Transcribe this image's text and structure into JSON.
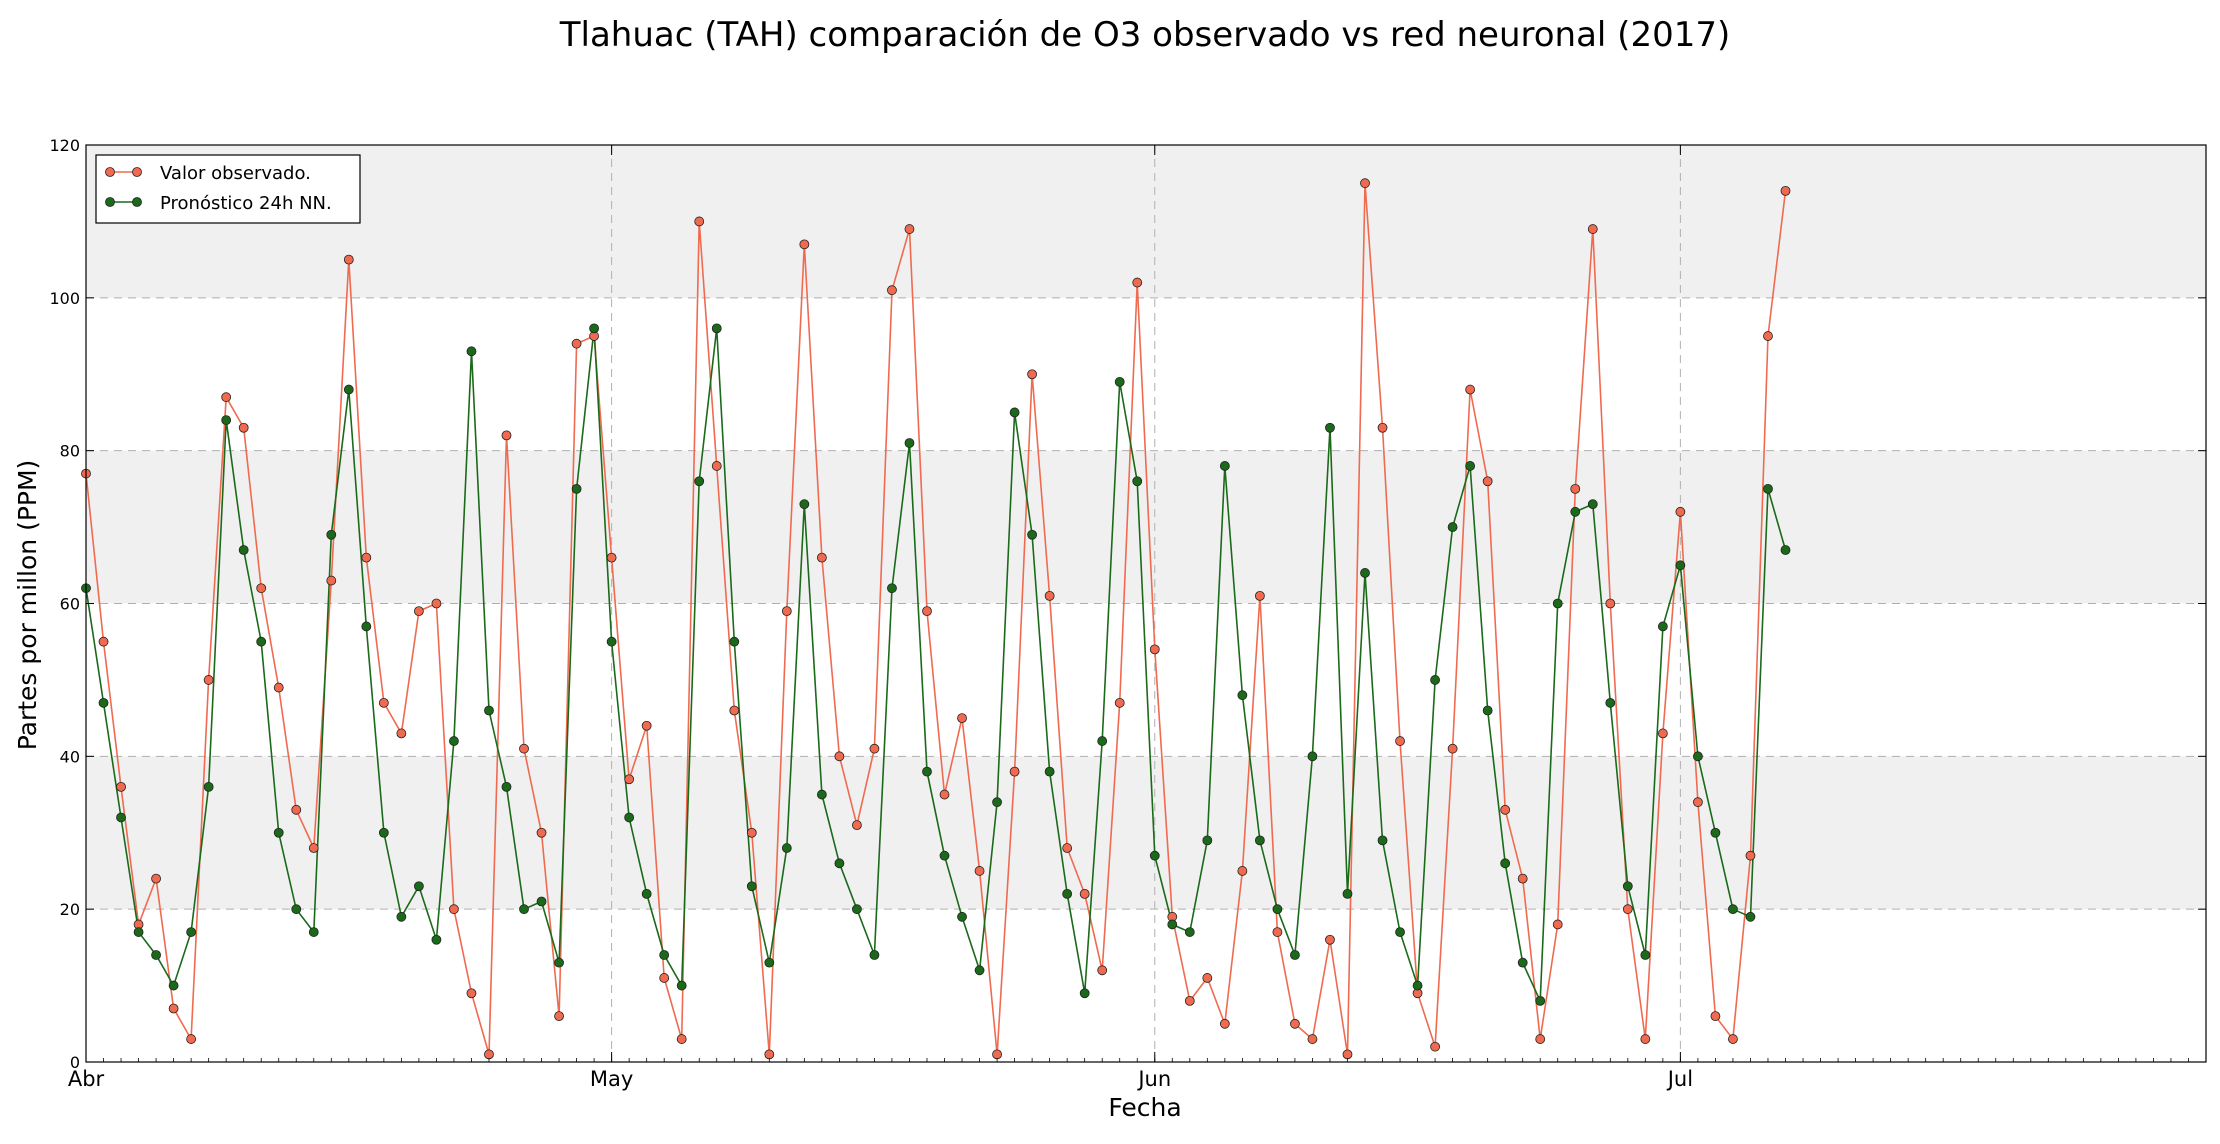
{
  "chart_data": {
    "type": "line",
    "title": "Tlahuac (TAH) comparación de O3 observado vs red neuronal (2017)",
    "xlabel": "Fecha",
    "ylabel": "Partes por millon (PPM)",
    "xlim": [
      "2017-04-01",
      "2017-07-31"
    ],
    "ylim": [
      0,
      120
    ],
    "yticks": [
      0,
      20,
      40,
      60,
      80,
      100,
      120
    ],
    "xticks": [
      {
        "date": "2017-04-01",
        "label": "Abr"
      },
      {
        "date": "2017-05-01",
        "label": "May"
      },
      {
        "date": "2017-06-01",
        "label": "Jun"
      },
      {
        "date": "2017-07-01",
        "label": "Jul"
      }
    ],
    "grid": true,
    "background_bands": "alternating light gray bands between y=20–40, 60–80, 100–120",
    "legend": {
      "position": "top-left"
    },
    "series": [
      {
        "name": "Valor observado.",
        "color": "#f06a50",
        "marker": "circle",
        "note": "approximate daily peaks and troughs; hourly data",
        "points": [
          [
            "2017-04-01",
            77
          ],
          [
            "2017-04-02",
            55
          ],
          [
            "2017-04-03",
            36
          ],
          [
            "2017-04-04",
            18
          ],
          [
            "2017-04-05",
            24
          ],
          [
            "2017-04-06",
            7
          ],
          [
            "2017-04-07",
            3
          ],
          [
            "2017-04-08",
            50
          ],
          [
            "2017-04-09",
            87
          ],
          [
            "2017-04-10",
            83
          ],
          [
            "2017-04-11",
            62
          ],
          [
            "2017-04-12",
            49
          ],
          [
            "2017-04-13",
            33
          ],
          [
            "2017-04-14",
            28
          ],
          [
            "2017-04-15",
            63
          ],
          [
            "2017-04-16",
            105
          ],
          [
            "2017-04-17",
            66
          ],
          [
            "2017-04-18",
            47
          ],
          [
            "2017-04-19",
            43
          ],
          [
            "2017-04-20",
            59
          ],
          [
            "2017-04-21",
            60
          ],
          [
            "2017-04-22",
            20
          ],
          [
            "2017-04-23",
            9
          ],
          [
            "2017-04-24",
            1
          ],
          [
            "2017-04-25",
            82
          ],
          [
            "2017-04-26",
            41
          ],
          [
            "2017-04-27",
            30
          ],
          [
            "2017-04-28",
            6
          ],
          [
            "2017-04-29",
            94
          ],
          [
            "2017-04-30",
            95
          ],
          [
            "2017-05-01",
            66
          ],
          [
            "2017-05-02",
            37
          ],
          [
            "2017-05-03",
            44
          ],
          [
            "2017-05-04",
            11
          ],
          [
            "2017-05-05",
            3
          ],
          [
            "2017-05-06",
            110
          ],
          [
            "2017-05-07",
            78
          ],
          [
            "2017-05-08",
            46
          ],
          [
            "2017-05-09",
            30
          ],
          [
            "2017-05-10",
            1
          ],
          [
            "2017-05-11",
            59
          ],
          [
            "2017-05-12",
            107
          ],
          [
            "2017-05-13",
            66
          ],
          [
            "2017-05-14",
            40
          ],
          [
            "2017-05-15",
            31
          ],
          [
            "2017-05-16",
            41
          ],
          [
            "2017-05-17",
            101
          ],
          [
            "2017-05-18",
            109
          ],
          [
            "2017-05-19",
            59
          ],
          [
            "2017-05-20",
            35
          ],
          [
            "2017-05-21",
            45
          ],
          [
            "2017-05-22",
            25
          ],
          [
            "2017-05-23",
            1
          ],
          [
            "2017-05-24",
            38
          ],
          [
            "2017-05-25",
            90
          ],
          [
            "2017-05-26",
            61
          ],
          [
            "2017-05-27",
            28
          ],
          [
            "2017-05-28",
            22
          ],
          [
            "2017-05-29",
            12
          ],
          [
            "2017-05-30",
            47
          ],
          [
            "2017-05-31",
            102
          ],
          [
            "2017-06-01",
            54
          ],
          [
            "2017-06-02",
            19
          ],
          [
            "2017-06-03",
            8
          ],
          [
            "2017-06-04",
            11
          ],
          [
            "2017-06-05",
            5
          ],
          [
            "2017-06-06",
            25
          ],
          [
            "2017-06-07",
            61
          ],
          [
            "2017-06-08",
            17
          ],
          [
            "2017-06-09",
            5
          ],
          [
            "2017-06-10",
            3
          ],
          [
            "2017-06-11",
            16
          ],
          [
            "2017-06-12",
            1
          ],
          [
            "2017-06-13",
            115
          ],
          [
            "2017-06-14",
            83
          ],
          [
            "2017-06-15",
            42
          ],
          [
            "2017-06-16",
            9
          ],
          [
            "2017-06-17",
            2
          ],
          [
            "2017-06-18",
            41
          ],
          [
            "2017-06-19",
            88
          ],
          [
            "2017-06-20",
            76
          ],
          [
            "2017-06-21",
            33
          ],
          [
            "2017-06-22",
            24
          ],
          [
            "2017-06-23",
            3
          ],
          [
            "2017-06-24",
            18
          ],
          [
            "2017-06-25",
            75
          ],
          [
            "2017-06-26",
            109
          ],
          [
            "2017-06-27",
            60
          ],
          [
            "2017-06-28",
            20
          ],
          [
            "2017-06-29",
            3
          ],
          [
            "2017-06-30",
            43
          ],
          [
            "2017-07-01",
            72
          ],
          [
            "2017-07-02",
            34
          ],
          [
            "2017-07-03",
            6
          ],
          [
            "2017-07-04",
            3
          ],
          [
            "2017-07-05",
            27
          ],
          [
            "2017-07-06",
            95
          ],
          [
            "2017-07-07",
            114
          ]
        ]
      },
      {
        "name": "Pronóstico 24h NN.",
        "color": "#1a6a1a",
        "marker": "circle",
        "note": "approximate daily peaks and troughs; hourly data",
        "points": [
          [
            "2017-04-01",
            62
          ],
          [
            "2017-04-02",
            47
          ],
          [
            "2017-04-03",
            32
          ],
          [
            "2017-04-04",
            17
          ],
          [
            "2017-04-05",
            14
          ],
          [
            "2017-04-06",
            10
          ],
          [
            "2017-04-07",
            17
          ],
          [
            "2017-04-08",
            36
          ],
          [
            "2017-04-09",
            84
          ],
          [
            "2017-04-10",
            67
          ],
          [
            "2017-04-11",
            55
          ],
          [
            "2017-04-12",
            30
          ],
          [
            "2017-04-13",
            20
          ],
          [
            "2017-04-14",
            17
          ],
          [
            "2017-04-15",
            69
          ],
          [
            "2017-04-16",
            88
          ],
          [
            "2017-04-17",
            57
          ],
          [
            "2017-04-18",
            30
          ],
          [
            "2017-04-19",
            19
          ],
          [
            "2017-04-20",
            23
          ],
          [
            "2017-04-21",
            16
          ],
          [
            "2017-04-22",
            42
          ],
          [
            "2017-04-23",
            93
          ],
          [
            "2017-04-24",
            46
          ],
          [
            "2017-04-25",
            36
          ],
          [
            "2017-04-26",
            20
          ],
          [
            "2017-04-27",
            21
          ],
          [
            "2017-04-28",
            13
          ],
          [
            "2017-04-29",
            75
          ],
          [
            "2017-04-30",
            96
          ],
          [
            "2017-05-01",
            55
          ],
          [
            "2017-05-02",
            32
          ],
          [
            "2017-05-03",
            22
          ],
          [
            "2017-05-04",
            14
          ],
          [
            "2017-05-05",
            10
          ],
          [
            "2017-05-06",
            76
          ],
          [
            "2017-05-07",
            96
          ],
          [
            "2017-05-08",
            55
          ],
          [
            "2017-05-09",
            23
          ],
          [
            "2017-05-10",
            13
          ],
          [
            "2017-05-11",
            28
          ],
          [
            "2017-05-12",
            73
          ],
          [
            "2017-05-13",
            35
          ],
          [
            "2017-05-14",
            26
          ],
          [
            "2017-05-15",
            20
          ],
          [
            "2017-05-16",
            14
          ],
          [
            "2017-05-17",
            62
          ],
          [
            "2017-05-18",
            81
          ],
          [
            "2017-05-19",
            38
          ],
          [
            "2017-05-20",
            27
          ],
          [
            "2017-05-21",
            19
          ],
          [
            "2017-05-22",
            12
          ],
          [
            "2017-05-23",
            34
          ],
          [
            "2017-05-24",
            85
          ],
          [
            "2017-05-25",
            69
          ],
          [
            "2017-05-26",
            38
          ],
          [
            "2017-05-27",
            22
          ],
          [
            "2017-05-28",
            9
          ],
          [
            "2017-05-29",
            42
          ],
          [
            "2017-05-30",
            89
          ],
          [
            "2017-05-31",
            76
          ],
          [
            "2017-06-01",
            27
          ],
          [
            "2017-06-02",
            18
          ],
          [
            "2017-06-03",
            17
          ],
          [
            "2017-06-04",
            29
          ],
          [
            "2017-06-05",
            78
          ],
          [
            "2017-06-06",
            48
          ],
          [
            "2017-06-07",
            29
          ],
          [
            "2017-06-08",
            20
          ],
          [
            "2017-06-09",
            14
          ],
          [
            "2017-06-10",
            40
          ],
          [
            "2017-06-11",
            83
          ],
          [
            "2017-06-12",
            22
          ],
          [
            "2017-06-13",
            64
          ],
          [
            "2017-06-14",
            29
          ],
          [
            "2017-06-15",
            17
          ],
          [
            "2017-06-16",
            10
          ],
          [
            "2017-06-17",
            50
          ],
          [
            "2017-06-18",
            70
          ],
          [
            "2017-06-19",
            78
          ],
          [
            "2017-06-20",
            46
          ],
          [
            "2017-06-21",
            26
          ],
          [
            "2017-06-22",
            13
          ],
          [
            "2017-06-23",
            8
          ],
          [
            "2017-06-24",
            60
          ],
          [
            "2017-06-25",
            72
          ],
          [
            "2017-06-26",
            73
          ],
          [
            "2017-06-27",
            47
          ],
          [
            "2017-06-28",
            23
          ],
          [
            "2017-06-29",
            14
          ],
          [
            "2017-06-30",
            57
          ],
          [
            "2017-07-01",
            65
          ],
          [
            "2017-07-02",
            40
          ],
          [
            "2017-07-03",
            30
          ],
          [
            "2017-07-04",
            20
          ],
          [
            "2017-07-05",
            19
          ],
          [
            "2017-07-06",
            75
          ],
          [
            "2017-07-07",
            67
          ]
        ]
      }
    ]
  }
}
